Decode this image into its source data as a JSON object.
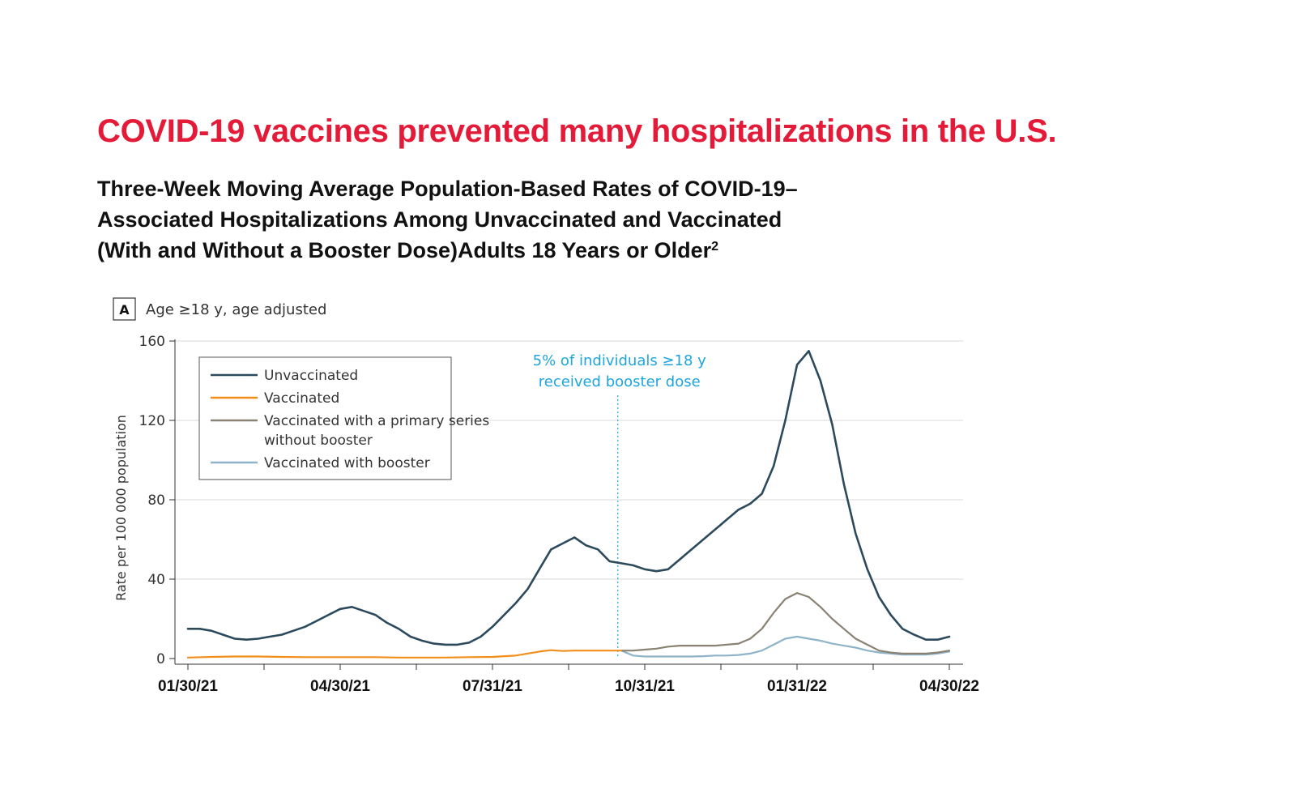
{
  "header": {
    "title": "COVID-19 vaccines prevented many hospitalizations in the U.S.",
    "subtitle_line1": "Three-Week Moving Average Population-Based Rates of COVID-19–",
    "subtitle_line2": "Associated Hospitalizations Among Unvaccinated and Vaccinated",
    "subtitle_line3": "(With and Without a Booster Dose)Adults 18 Years or Older",
    "footnote_mark": "2"
  },
  "colors": {
    "headline": "#e31b38",
    "unvaccinated": "#2c4a5c",
    "vaccinated": "#f28f1c",
    "primary_no_booster": "#8a8272",
    "with_booster": "#8fb3c8",
    "annotation": "#1ea6dc",
    "grid": "#d9d9d9"
  },
  "chart_data": {
    "type": "line",
    "panel_label": "A",
    "panel_title": "Age ≥18 y, age adjusted",
    "ylabel": "Rate per 100 000 population",
    "xlabel": "",
    "ylim": [
      0,
      160
    ],
    "yticks": [
      0,
      40,
      80,
      120,
      160
    ],
    "grid": true,
    "legend_position": "top-left",
    "x_tick_labels": [
      "01/30/21",
      "04/30/21",
      "07/31/21",
      "10/31/21",
      "01/31/22",
      "04/30/22"
    ],
    "x_tick_weeks": [
      0,
      13,
      26,
      39,
      52,
      65
    ],
    "annotation": {
      "line1": "5% of individuals ≥18 y",
      "line2": "received booster dose",
      "x_week": 36.7
    },
    "series": [
      {
        "name": "Unvaccinated",
        "color_key": "unvaccinated",
        "x_week": [
          0,
          1,
          2,
          3,
          4,
          5,
          6,
          7,
          8,
          9,
          10,
          11,
          12,
          13,
          14,
          15,
          16,
          17,
          18,
          19,
          20,
          21,
          22,
          23,
          24,
          25,
          26,
          27,
          28,
          29,
          30,
          31,
          32,
          33,
          34,
          35,
          36,
          37,
          38,
          39,
          40,
          41,
          42,
          43,
          44,
          45,
          46,
          47,
          48,
          49,
          50,
          51,
          52,
          53,
          54,
          55,
          56,
          57,
          58,
          59,
          60,
          61,
          62,
          63,
          64,
          65
        ],
        "values": [
          15,
          15,
          14,
          12,
          10,
          9.5,
          10,
          11,
          12,
          14,
          16,
          19,
          22,
          25,
          26,
          24,
          22,
          18,
          15,
          11,
          9,
          7.5,
          7,
          7,
          8,
          11,
          16,
          22,
          28,
          35,
          45,
          55,
          58,
          61,
          57,
          55,
          49,
          48,
          47,
          45,
          44,
          45,
          50,
          55,
          60,
          65,
          70,
          75,
          78,
          83,
          97,
          120,
          148,
          155,
          140,
          118,
          88,
          63,
          45,
          31,
          22,
          15,
          12,
          9.5,
          9.5,
          11
        ]
      },
      {
        "name": "Vaccinated",
        "color_key": "vaccinated",
        "x_week": [
          0,
          2,
          4,
          6,
          8,
          10,
          12,
          14,
          16,
          18,
          20,
          22,
          24,
          26,
          28,
          30,
          31,
          32,
          33,
          34,
          35,
          36,
          37
        ],
        "values": [
          0.5,
          0.8,
          1.0,
          1.0,
          0.8,
          0.7,
          0.7,
          0.7,
          0.7,
          0.5,
          0.5,
          0.5,
          0.7,
          0.8,
          1.5,
          3.5,
          4.2,
          3.8,
          4.0,
          4.0,
          4.0,
          4.0,
          4.0
        ]
      },
      {
        "name": "Vaccinated with a primary series without booster",
        "color_key": "primary_no_booster",
        "x_week": [
          37,
          38,
          39,
          40,
          41,
          42,
          43,
          44,
          45,
          46,
          47,
          48,
          49,
          50,
          51,
          52,
          53,
          54,
          55,
          56,
          57,
          58,
          59,
          60,
          61,
          62,
          63,
          64,
          65
        ],
        "values": [
          4,
          4,
          4.5,
          5,
          6,
          6.5,
          6.5,
          6.5,
          6.5,
          7,
          7.5,
          10,
          15,
          23,
          30,
          33,
          31,
          26,
          20,
          15,
          10,
          7,
          4,
          3,
          2.5,
          2.5,
          2.5,
          3,
          4
        ]
      },
      {
        "name": "Vaccinated with booster",
        "color_key": "with_booster",
        "x_week": [
          37,
          38,
          39,
          40,
          41,
          42,
          43,
          44,
          45,
          46,
          47,
          48,
          49,
          50,
          51,
          52,
          53,
          54,
          55,
          56,
          57,
          58,
          59,
          60,
          61,
          62,
          63,
          64,
          65
        ],
        "values": [
          4,
          1.5,
          1,
          1,
          1,
          1,
          1,
          1.2,
          1.5,
          1.5,
          1.8,
          2.5,
          4,
          7,
          10,
          11,
          10,
          9,
          7.5,
          6.5,
          5.5,
          4,
          3,
          2.5,
          2,
          2,
          2,
          2.5,
          3.5
        ]
      }
    ]
  }
}
